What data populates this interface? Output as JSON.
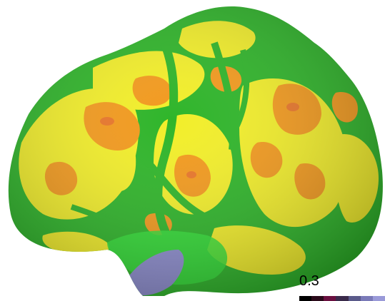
{
  "figure": {
    "surface_colors": {
      "background": "#ffffff",
      "low": "#2fb52a",
      "mid": "#f2ee2a",
      "high": "#f29a1e",
      "highest": "#e8762a",
      "region_overlay": "#8f8fd0",
      "bright_green": "#35e03a"
    }
  },
  "colorbar": {
    "label": "0.3",
    "stops": [
      "#000000",
      "#2a0a1a",
      "#6a1040",
      "#3a2a4a",
      "#5a5a8a",
      "#7a7ab8",
      "#9a9ad8"
    ]
  }
}
